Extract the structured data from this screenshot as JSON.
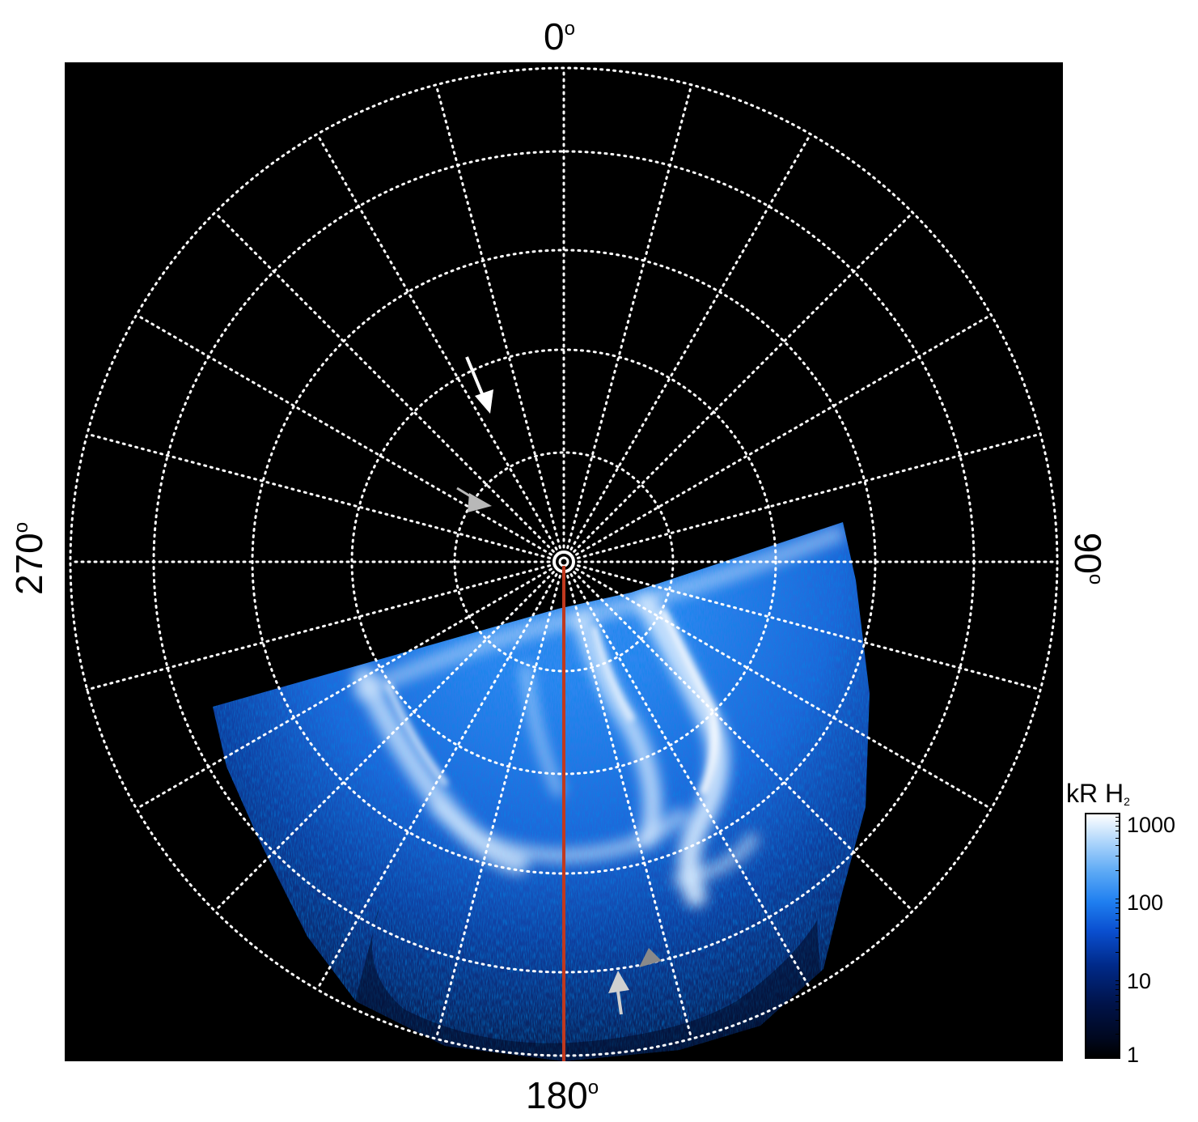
{
  "axis_labels": {
    "top": "0",
    "bottom": "180",
    "left": "270",
    "right": "90",
    "degree_symbol": "o"
  },
  "colorbar": {
    "title_main": "kR H",
    "title_sub": "2",
    "ticks": [
      "1000",
      "100",
      "10",
      "1"
    ],
    "scale": "log",
    "range": [
      1,
      1000
    ]
  },
  "colors": {
    "background": "#000000",
    "grid": "#ffffff",
    "meridian_line": "#c0391e",
    "aurora_low": "#002a8a",
    "aurora_mid": "#1f7ff0",
    "aurora_high": "#ffffff",
    "arrow_white": "#ffffff",
    "arrow_gray": "#b0b0b0",
    "arrow_dark_gray": "#808080"
  },
  "arrows": [
    {
      "name": "white-arrow",
      "color": "white"
    },
    {
      "name": "light-gray-arrow-upper",
      "color": "light gray"
    },
    {
      "name": "dark-gray-arrow-lower",
      "color": "dark gray"
    },
    {
      "name": "light-gray-arrow-lower",
      "color": "light gray"
    }
  ]
}
